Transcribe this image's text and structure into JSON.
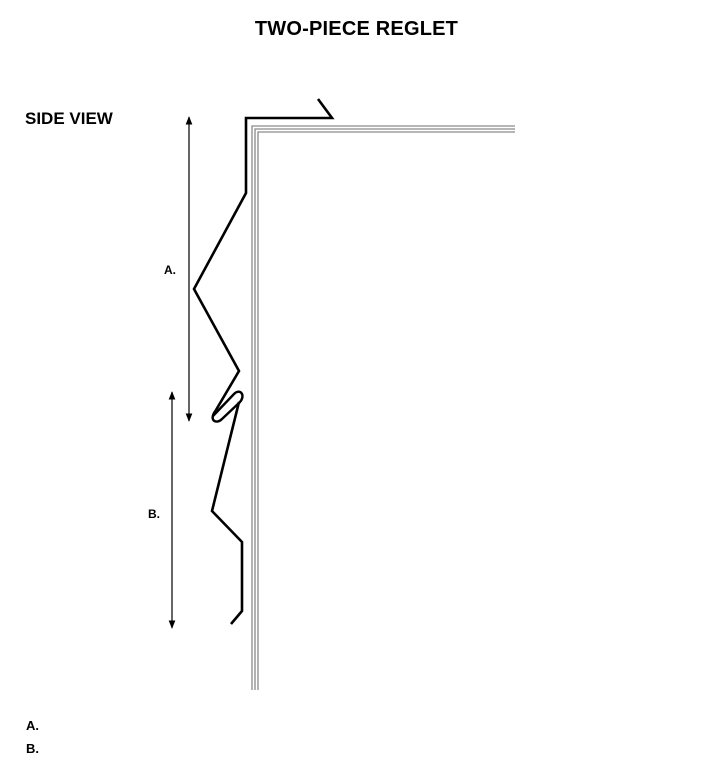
{
  "title": "TWO-PIECE REGLET",
  "view_label": "SIDE VIEW",
  "dimensions": {
    "a_label": "A.",
    "b_label": "B."
  },
  "legend": [
    {
      "key": "A.",
      "text": ""
    },
    {
      "key": "B.",
      "text": ""
    }
  ],
  "colors": {
    "stroke": "#000000",
    "wall": "#888888",
    "background": "#ffffff"
  }
}
